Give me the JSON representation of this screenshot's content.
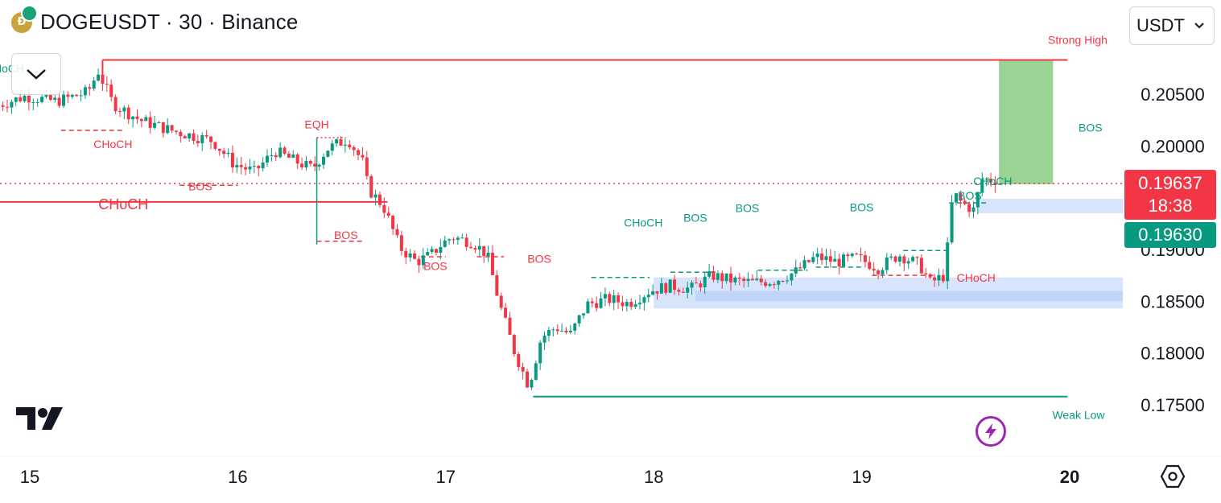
{
  "header": {
    "symbol_title": "DOGEUSDT · 30 · Binance",
    "coin_glyph": "Ð",
    "currency": "USDT"
  },
  "colors": {
    "up": "#089981",
    "down": "#f23645",
    "zone": "#a7c4f7",
    "target": "#7fc97a"
  },
  "price_tags": {
    "last_price": "0.19637",
    "countdown": "18:38",
    "prev_price": "0.19630"
  },
  "chart_data": {
    "type": "candlestick",
    "title": "DOGEUSDT · 30 · Binance",
    "interval": "30",
    "x_axis": {
      "labels": [
        "15",
        "16",
        "17",
        "18",
        "19",
        "20"
      ],
      "range_days": [
        14.85,
        20.15
      ]
    },
    "y_axis": {
      "ticks": [
        0.175,
        0.18,
        0.185,
        0.19,
        0.195,
        0.2,
        0.205
      ],
      "tick_labels": [
        "0.17500",
        "0.18000",
        "0.18500",
        "0.19000",
        "",
        "0.20000",
        "0.20500"
      ],
      "range": [
        0.1715,
        0.2125
      ]
    },
    "last_price": 0.19637,
    "prev_price": 0.1963,
    "price_path": [
      [
        14.85,
        0.2038
      ],
      [
        15.0,
        0.2048
      ],
      [
        15.15,
        0.2043
      ],
      [
        15.3,
        0.2052
      ],
      [
        15.35,
        0.2072
      ],
      [
        15.42,
        0.2041
      ],
      [
        15.55,
        0.2025
      ],
      [
        15.7,
        0.2015
      ],
      [
        15.9,
        0.2005
      ],
      [
        16.0,
        0.1983
      ],
      [
        16.1,
        0.1975
      ],
      [
        16.2,
        0.1995
      ],
      [
        16.3,
        0.1985
      ],
      [
        16.38,
        0.1978
      ],
      [
        16.45,
        0.1997
      ],
      [
        16.55,
        0.2007
      ],
      [
        16.62,
        0.1985
      ],
      [
        16.65,
        0.1958
      ],
      [
        16.72,
        0.1942
      ],
      [
        16.8,
        0.1902
      ],
      [
        16.88,
        0.1888
      ],
      [
        16.95,
        0.1895
      ],
      [
        17.0,
        0.1905
      ],
      [
        17.05,
        0.1912
      ],
      [
        17.15,
        0.1907
      ],
      [
        17.22,
        0.1895
      ],
      [
        17.28,
        0.1847
      ],
      [
        17.35,
        0.1802
      ],
      [
        17.42,
        0.1768
      ],
      [
        17.48,
        0.1815
      ],
      [
        17.55,
        0.1825
      ],
      [
        17.62,
        0.1818
      ],
      [
        17.7,
        0.1847
      ],
      [
        17.8,
        0.1852
      ],
      [
        17.9,
        0.1848
      ],
      [
        18.0,
        0.186
      ],
      [
        18.1,
        0.1865
      ],
      [
        18.2,
        0.1862
      ],
      [
        18.3,
        0.1875
      ],
      [
        18.4,
        0.187
      ],
      [
        18.5,
        0.1868
      ],
      [
        18.6,
        0.187
      ],
      [
        18.7,
        0.1878
      ],
      [
        18.8,
        0.1893
      ],
      [
        18.9,
        0.1888
      ],
      [
        19.0,
        0.1892
      ],
      [
        19.1,
        0.1882
      ],
      [
        19.2,
        0.1895
      ],
      [
        19.3,
        0.1885
      ],
      [
        19.35,
        0.1868
      ],
      [
        19.42,
        0.1875
      ],
      [
        19.46,
        0.1955
      ],
      [
        19.5,
        0.1945
      ],
      [
        19.56,
        0.1938
      ],
      [
        19.6,
        0.1968
      ],
      [
        19.65,
        0.1967
      ]
    ],
    "levels": [
      {
        "label": "Strong High",
        "price": 0.2083,
        "from": 15.35,
        "to": 19.99,
        "color": "#f23645"
      },
      {
        "label": "Weak Low",
        "price": 0.1758,
        "from": 17.42,
        "to": 19.99,
        "color": "#089981"
      },
      {
        "label": "CHoCH",
        "price": 0.1946,
        "from": 14.85,
        "to": 16.72,
        "color": "#f23645"
      }
    ],
    "structure_labels": [
      {
        "text": "CHoCH",
        "x": 14.88,
        "y": 0.2071,
        "color": "#089981"
      },
      {
        "text": "CHoCH",
        "x": 15.4,
        "y": 0.1998,
        "color": "#f23645"
      },
      {
        "text": "BOS",
        "x": 15.82,
        "y": 0.1957,
        "color": "#f23645"
      },
      {
        "text": "EQH",
        "x": 16.38,
        "y": 0.2017,
        "color": "#f23645"
      },
      {
        "text": "BOS",
        "x": 16.52,
        "y": 0.191,
        "color": "#f23645"
      },
      {
        "text": "BOS",
        "x": 16.95,
        "y": 0.188,
        "color": "#f23645"
      },
      {
        "text": "BOS",
        "x": 17.45,
        "y": 0.1887,
        "color": "#f23645"
      },
      {
        "text": "CHoCH",
        "x": 17.95,
        "y": 0.1922,
        "color": "#089981"
      },
      {
        "text": "BOS",
        "x": 18.2,
        "y": 0.1927,
        "color": "#089981"
      },
      {
        "text": "BOS",
        "x": 18.45,
        "y": 0.1936,
        "color": "#089981"
      },
      {
        "text": "BOS",
        "x": 19.0,
        "y": 0.1937,
        "color": "#089981"
      },
      {
        "text": "BOS",
        "x": 19.52,
        "y": 0.1948,
        "color": "#089981"
      },
      {
        "text": "CHoCH",
        "x": 19.63,
        "y": 0.1962,
        "color": "#089981"
      },
      {
        "text": "BOS",
        "x": 20.1,
        "y": 0.2014,
        "color": "#089981"
      },
      {
        "text": "CHoCH",
        "x": 19.55,
        "y": 0.1869,
        "color": "#f23645"
      }
    ],
    "big_label": {
      "text": "CHoCH",
      "x": 15.45,
      "y": 0.1939,
      "color": "#f23645"
    },
    "zones": [
      {
        "from": 19.56,
        "to": 20.26,
        "top": 0.1949,
        "bottom": 0.1935
      },
      {
        "from": 18.0,
        "to": 20.26,
        "top": 0.1873,
        "bottom": 0.1843
      },
      {
        "from": 18.2,
        "to": 20.26,
        "top": 0.186,
        "bottom": 0.185
      }
    ],
    "target_box": {
      "from": 19.66,
      "to": 19.92,
      "top": 0.2083,
      "bottom": 0.1963
    }
  }
}
